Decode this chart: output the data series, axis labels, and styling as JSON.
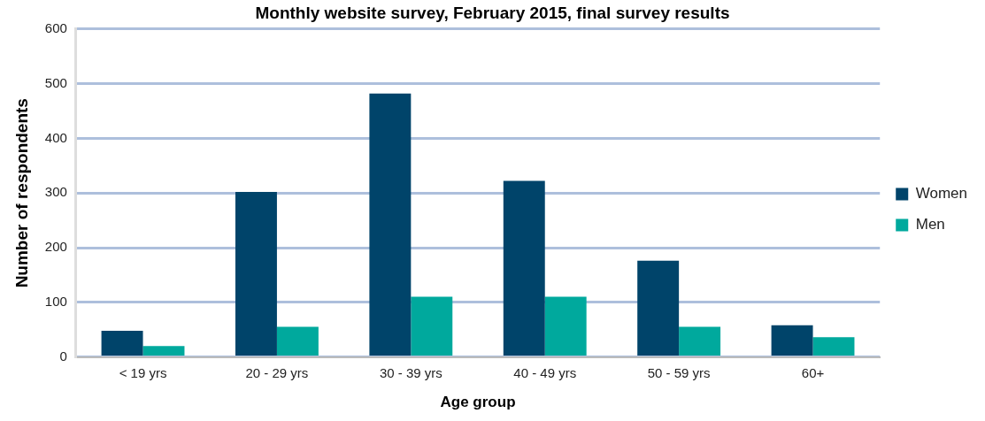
{
  "chart_data": {
    "type": "bar",
    "title": "Monthly website survey, February 2015, final survey results",
    "xlabel": "Age group",
    "ylabel": "Number of respondents",
    "categories": [
      "< 19 yrs",
      "20 - 29 yrs",
      "30 - 39 yrs",
      "40 - 49 yrs",
      "50 - 59 yrs",
      "60+"
    ],
    "series": [
      {
        "name": "Women",
        "color": "#00446a",
        "values": [
          48,
          302,
          482,
          322,
          176,
          58
        ]
      },
      {
        "name": "Men",
        "color": "#00a99d",
        "values": [
          20,
          55,
          110,
          110,
          55,
          36
        ]
      }
    ],
    "ylim": [
      0,
      600
    ],
    "yticks": [
      0,
      100,
      200,
      300,
      400,
      500,
      600
    ],
    "grid": "y",
    "legend": "right"
  }
}
